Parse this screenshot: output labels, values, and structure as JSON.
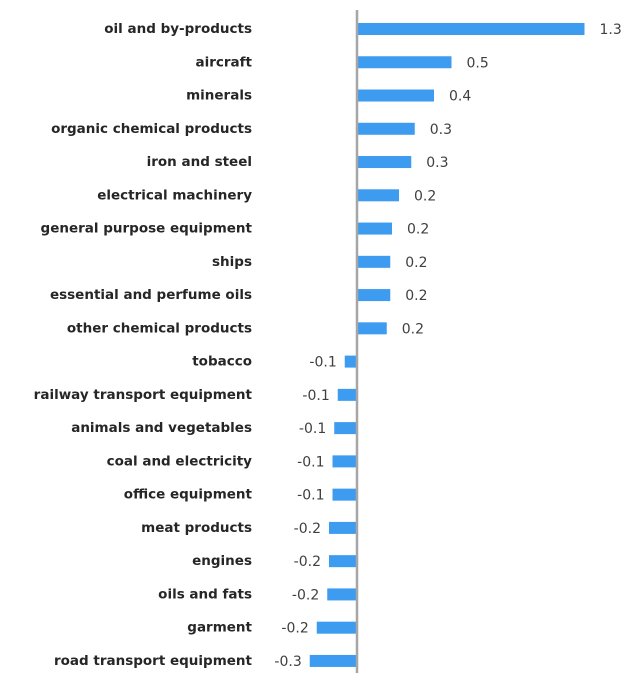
{
  "chart_data": {
    "type": "hbar",
    "categories": [
      "oil and by-products",
      "aircraft",
      "minerals",
      "organic chemical products",
      "iron and steel",
      "electrical machinery",
      "general purpose equipment",
      "ships",
      "essential and perfume oils",
      "other chemical products",
      "tobacco",
      "railway transport equipment",
      "animals and vegetables",
      "coal and electricity",
      "office equipment",
      "meat products",
      "engines",
      "oils and fats",
      "garment",
      "road transport equipment"
    ],
    "values": [
      1.3,
      0.54,
      0.44,
      0.33,
      0.31,
      0.24,
      0.2,
      0.19,
      0.19,
      0.17,
      -0.07,
      -0.11,
      -0.13,
      -0.14,
      -0.14,
      -0.16,
      -0.16,
      -0.17,
      -0.23,
      -0.27
    ],
    "value_labels": [
      "1.3",
      "0.5",
      "0.4",
      "0.3",
      "0.3",
      "0.2",
      "0.2",
      "0.2",
      "0.2",
      "0.2",
      "-0.1",
      "-0.1",
      "-0.1",
      "-0.1",
      "-0.1",
      "-0.2",
      "-0.2",
      "-0.2",
      "-0.2",
      "-0.3"
    ],
    "color": "#3d9bf0",
    "xlim": [
      -0.3,
      1.3
    ]
  }
}
